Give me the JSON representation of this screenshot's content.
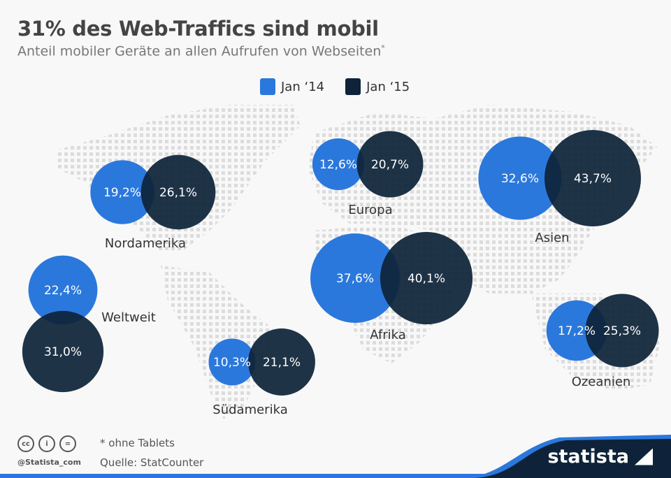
{
  "header": {
    "title": "31% des Web-Traffics sind mobil",
    "subtitle": "Anteil mobiler Geräte an allen Aufrufen von Webseiten",
    "subtitle_mark": "*"
  },
  "colors": {
    "jan14": "#2b78dc",
    "jan15": "#0e2339",
    "map_dots": "#dedede",
    "brand_dark": "#0e2339",
    "brand_accent": "#2b78dc"
  },
  "chart_data": {
    "type": "scatter",
    "encoding": "bubble area proportional to value, overlaid on dotted world map",
    "unit": "%",
    "legend": [
      "Jan ‘14",
      "Jan ‘15"
    ],
    "legend_placement": "top",
    "categories": [
      "Nordamerika",
      "Europa",
      "Asien",
      "Afrika",
      "Ozeanien",
      "Südamerika",
      "Weltweit"
    ],
    "series": [
      {
        "name": "Jan ‘14",
        "values": [
          19.2,
          12.6,
          32.6,
          37.6,
          17.2,
          10.3,
          22.4
        ],
        "labels": [
          "19,2%",
          "12,6%",
          "32,6%",
          "37,6%",
          "17,2%",
          "10,3%",
          "22,4%"
        ]
      },
      {
        "name": "Jan ‘15",
        "values": [
          26.1,
          20.7,
          43.7,
          40.1,
          25.3,
          21.1,
          31.0
        ],
        "labels": [
          "26,1%",
          "20,7%",
          "43,7%",
          "40,1%",
          "25,3%",
          "21,1%",
          "31,0%"
        ]
      }
    ]
  },
  "footer": {
    "note": "* ohne Tablets",
    "source": "Quelle: StatCounter",
    "handle": "@Statista_com",
    "license_icons": [
      "cc-icon",
      "attribution-icon",
      "no-derivatives-icon"
    ],
    "brand": "statista"
  }
}
